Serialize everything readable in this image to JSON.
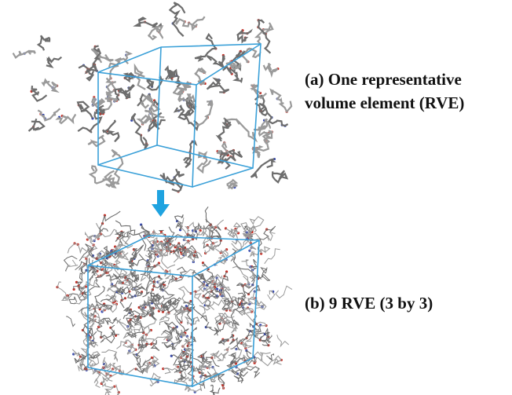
{
  "figure": {
    "panel_a": {
      "lines": [
        "(a) One representative",
        "volume element (RVE)"
      ]
    },
    "panel_b": {
      "lines": [
        "(b) 9 RVE (3 by 3)"
      ]
    }
  }
}
